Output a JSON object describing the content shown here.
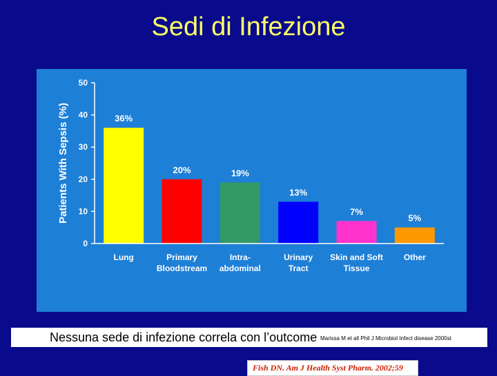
{
  "slide": {
    "title": "Sedi di Infezione",
    "footer_text": "Nessuna sede di infezione correla con l’outcome",
    "footer_reference": "Marissa M et all Phil J Microbiol Infect disease 2000st"
  },
  "colors": {
    "slide_background": "#0a0a8c",
    "title": "#ffff66",
    "chart_background": "#1e7fd6"
  },
  "chart_data": {
    "type": "bar",
    "ylabel": "Patients With Sepsis (%)",
    "ylim": [
      0,
      50
    ],
    "yticks": [
      0,
      10,
      20,
      30,
      40,
      50
    ],
    "grid": false,
    "categories": [
      [
        "Lung"
      ],
      [
        "Primary",
        "Bloodstream"
      ],
      [
        "Intra-",
        "abdominal"
      ],
      [
        "Urinary",
        "Tract"
      ],
      [
        "Skin and Soft",
        "Tissue"
      ],
      [
        "Other"
      ]
    ],
    "values": [
      36,
      20,
      19,
      13,
      7,
      5
    ],
    "data_labels": [
      "36%",
      "20%",
      "19%",
      "13%",
      "7%",
      "5%"
    ],
    "bar_colors": [
      "#ffff00",
      "#ff0000",
      "#339966",
      "#0000ff",
      "#ff33cc",
      "#ff9900"
    ],
    "source": "Fish DN. Am J Health Syst Pharm. 2002;59"
  }
}
